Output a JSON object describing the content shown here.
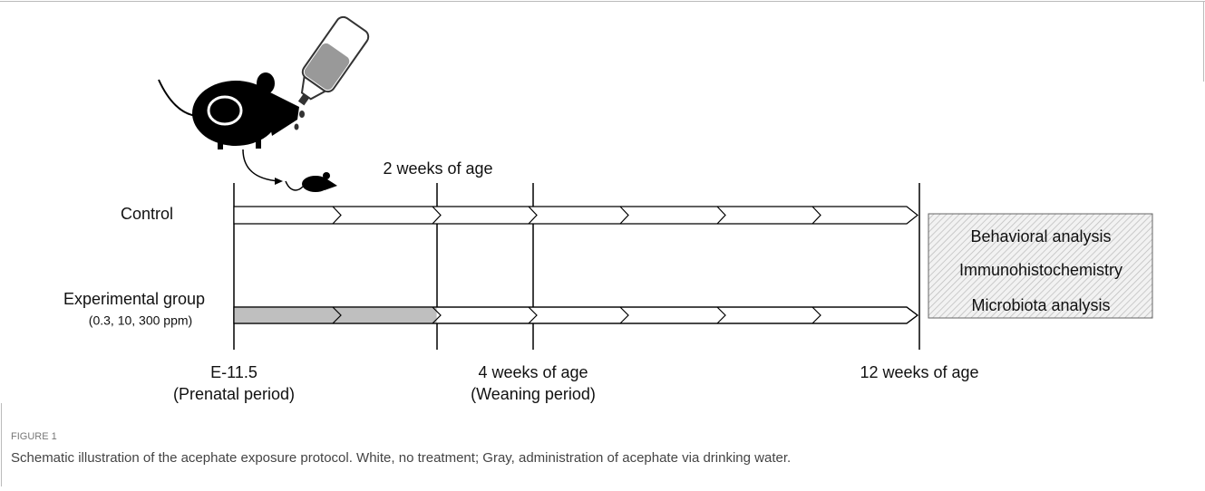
{
  "figure": {
    "top_label": "2 weeks of age",
    "groups": [
      "Control",
      "Experimental group"
    ],
    "group_note": "(0.3, 10, 300 ppm)",
    "timepoints": [
      {
        "label": "E-11.5",
        "period": "(Prenatal period)"
      },
      {
        "label": "4 weeks of age",
        "period": "(Weaning period)"
      },
      {
        "label": "12 weeks of age"
      }
    ],
    "analyses": [
      "Behavioral analysis",
      "Immunohistochemistry",
      "Microbiota analysis"
    ],
    "caption_label": "FIGURE 1",
    "caption": "Schematic illustration of the acephate exposure protocol. White, no treatment; Gray, administration of acephate via drinking water."
  }
}
